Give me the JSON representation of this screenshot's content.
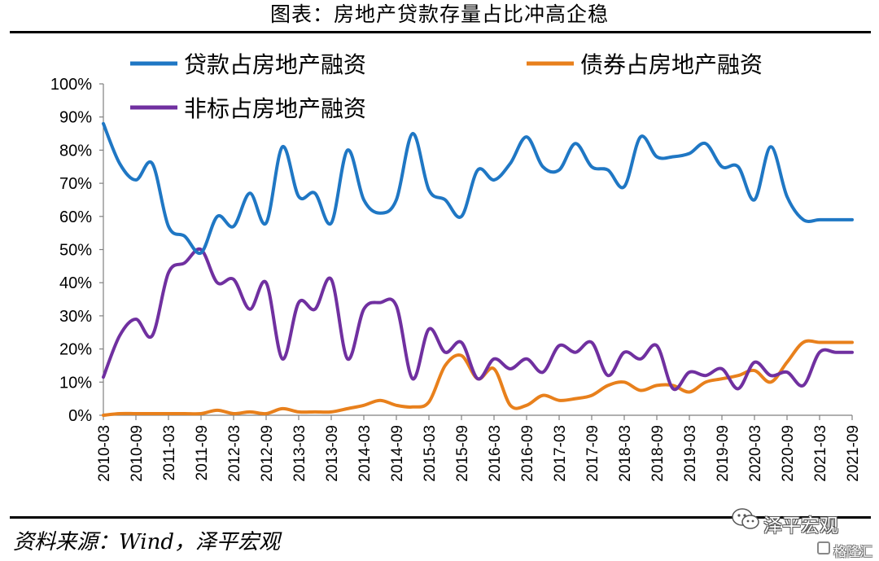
{
  "title": "图表：房地产贷款存量占比冲高企稳",
  "source": "资料来源：Wind，泽平宏观",
  "watermark": "泽平宏观",
  "badge": "格隆汇",
  "colors": {
    "loan": "#1f77c4",
    "bond": "#e8801c",
    "nonstandard": "#7030a0"
  },
  "chart_data": {
    "type": "line",
    "title": "图表：房地产贷款存量占比冲高企稳",
    "xlabel": "",
    "ylabel": "",
    "ylim": [
      0,
      100
    ],
    "y_ticks": [
      "0%",
      "10%",
      "20%",
      "30%",
      "40%",
      "50%",
      "60%",
      "70%",
      "80%",
      "90%",
      "100%"
    ],
    "x_tick_labels": [
      "2010-03",
      "2010-09",
      "2011-03",
      "2011-09",
      "2012-03",
      "2012-09",
      "2013-03",
      "2013-09",
      "2014-03",
      "2014-09",
      "2015-03",
      "2015-09",
      "2016-03",
      "2016-09",
      "2017-03",
      "2017-09",
      "2018-03",
      "2018-09",
      "2019-03",
      "2019-09",
      "2020-03",
      "2020-09",
      "2021-03",
      "2021-09"
    ],
    "x": [
      "2010-03",
      "2010-06",
      "2010-09",
      "2010-12",
      "2011-03",
      "2011-06",
      "2011-09",
      "2011-12",
      "2012-03",
      "2012-06",
      "2012-09",
      "2012-12",
      "2013-03",
      "2013-06",
      "2013-09",
      "2013-12",
      "2014-03",
      "2014-06",
      "2014-09",
      "2014-12",
      "2015-03",
      "2015-06",
      "2015-09",
      "2015-12",
      "2016-03",
      "2016-06",
      "2016-09",
      "2016-12",
      "2017-03",
      "2017-06",
      "2017-09",
      "2017-12",
      "2018-03",
      "2018-06",
      "2018-09",
      "2018-12",
      "2019-03",
      "2019-06",
      "2019-09",
      "2019-12",
      "2020-03",
      "2020-06",
      "2020-09",
      "2020-12",
      "2021-03",
      "2021-06",
      "2021-09"
    ],
    "legend_position": "top",
    "grid": false,
    "series": [
      {
        "name": "贷款占房地产融资",
        "color": "#1f77c4",
        "values": [
          88,
          76,
          71,
          76,
          57,
          54,
          49,
          60,
          57,
          67,
          58,
          81,
          66,
          67,
          58,
          80,
          65,
          61,
          65,
          85,
          68,
          65,
          60,
          74,
          71,
          76,
          84,
          75,
          74,
          82,
          75,
          74,
          69,
          84,
          78,
          78,
          79,
          82,
          75,
          75,
          65,
          81,
          66,
          59,
          59,
          59,
          59
        ]
      },
      {
        "name": "债券占房地产融资",
        "color": "#e8801c",
        "values": [
          0,
          0.5,
          0.5,
          0.5,
          0.5,
          0.5,
          0.5,
          1.5,
          0.5,
          1,
          0.5,
          2,
          1,
          1,
          1,
          2,
          3,
          4.5,
          3,
          2.5,
          4,
          15,
          18,
          11,
          14,
          3,
          3,
          6,
          4.5,
          5,
          6,
          9,
          10,
          7.5,
          9,
          9,
          7,
          10,
          11,
          12,
          13.5,
          10,
          16,
          22,
          22,
          22,
          22
        ]
      },
      {
        "name": "非标占房地产融资",
        "color": "#7030a0",
        "values": [
          11.5,
          24,
          29,
          24,
          43,
          46,
          50,
          40,
          41,
          32,
          40,
          17,
          34,
          32,
          41,
          17,
          32,
          34,
          33,
          11,
          26,
          19,
          22,
          11,
          17,
          14,
          17,
          13,
          21,
          19,
          22,
          12,
          19,
          17,
          21,
          8,
          13,
          12,
          14,
          8,
          16,
          12,
          13,
          9,
          19,
          19,
          19
        ]
      }
    ]
  }
}
